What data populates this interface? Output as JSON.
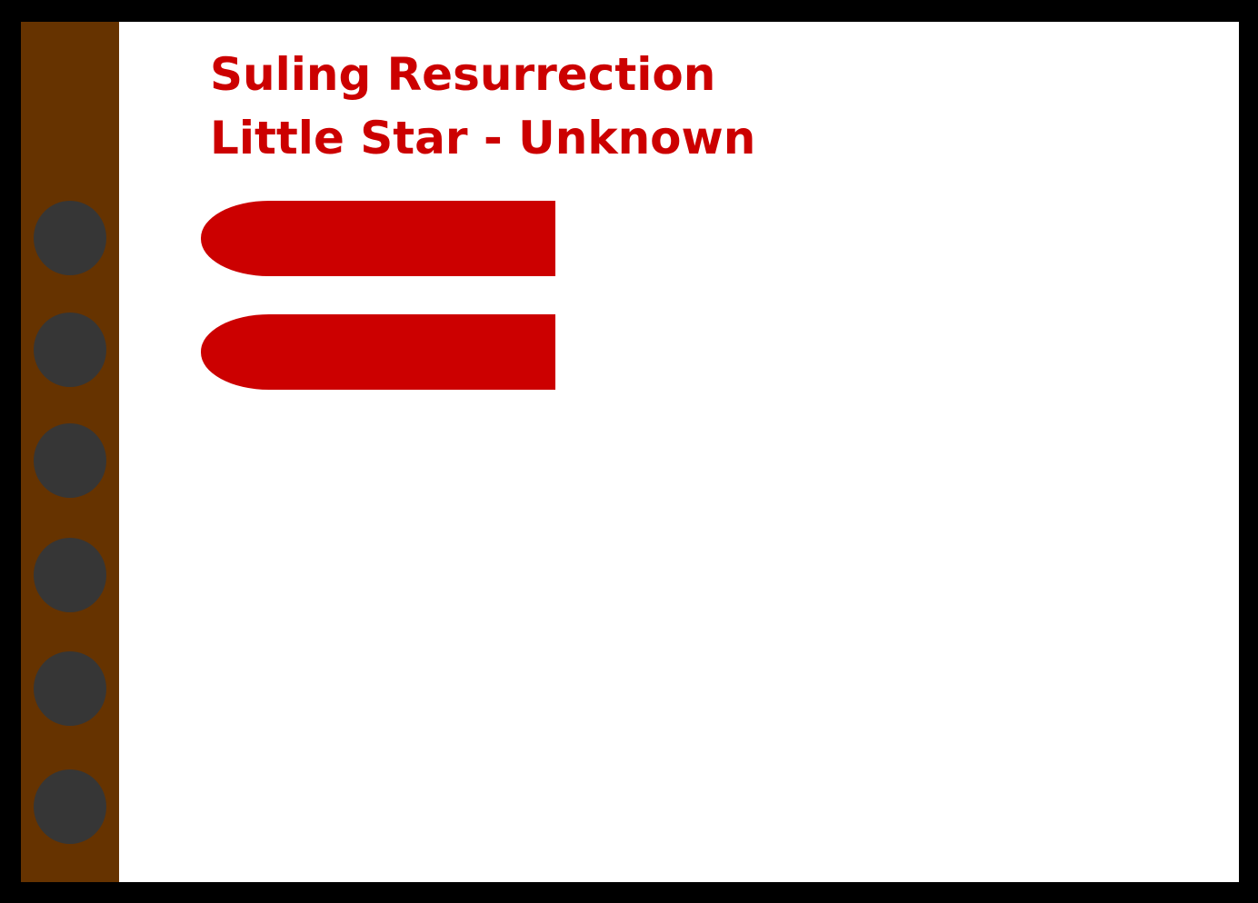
{
  "song": {
    "title": "Suling Resurrection",
    "subtitle": "Little Star - Unknown"
  },
  "notes": [
    {
      "name": "open-hole-indicator"
    },
    {
      "name": "open-hole-indicator"
    }
  ],
  "instrument": {
    "name": "suling",
    "holes": 6
  },
  "colors": {
    "background": "#000000",
    "paper": "#ffffff",
    "text": "#cc0000",
    "note": "#cc0000",
    "bamboo": "#663300",
    "hole": "#363636"
  }
}
